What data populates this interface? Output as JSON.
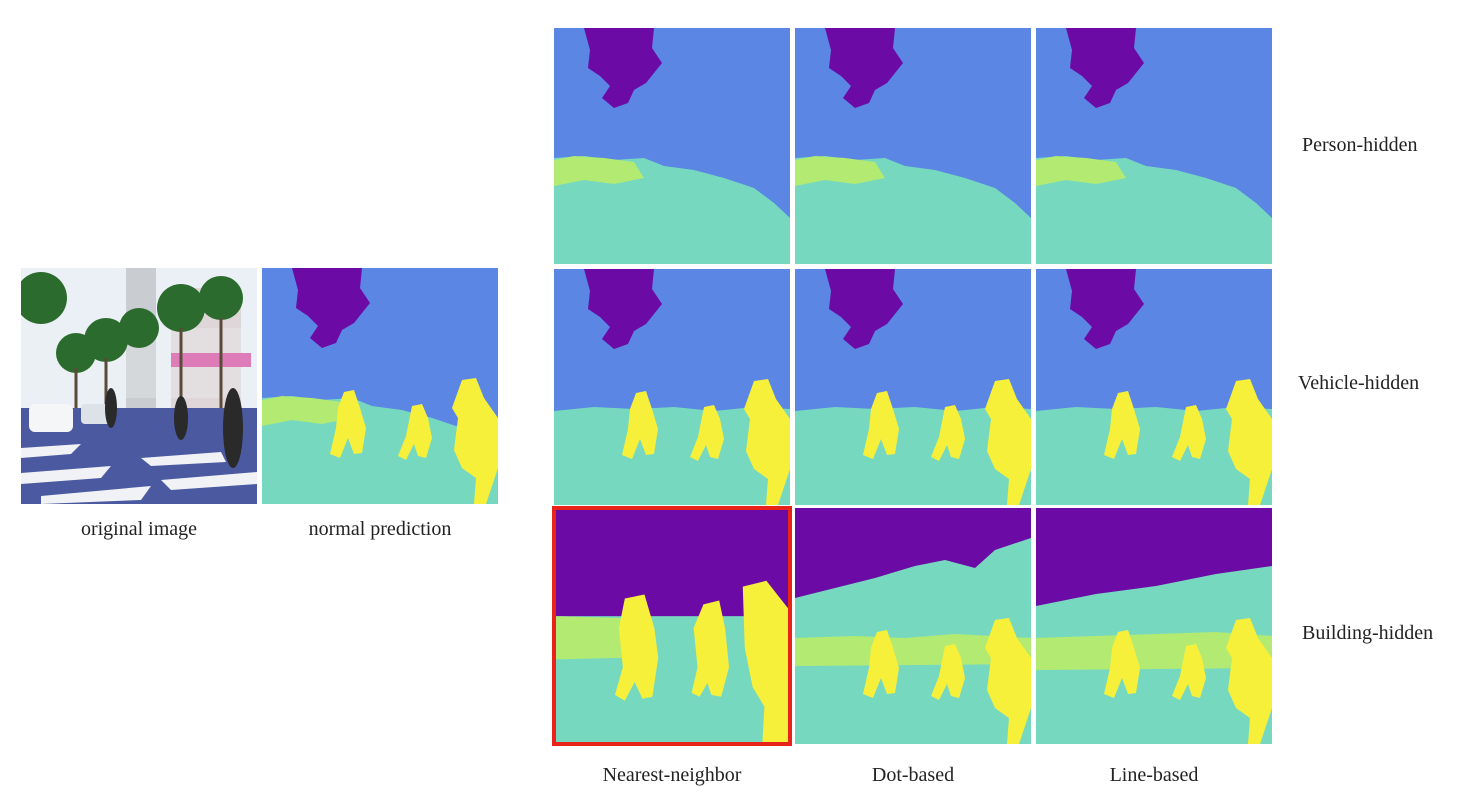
{
  "figure": {
    "left_captions": {
      "original": "original image",
      "normal": "normal prediction"
    },
    "column_captions": [
      "Nearest-neighbor",
      "Dot-based",
      "Line-based"
    ],
    "row_labels": [
      "Person-hidden",
      "Vehicle-hidden",
      "Building-hidden"
    ],
    "highlighted_panel": {
      "row": 3,
      "column": "Nearest-neighbor"
    },
    "colors": {
      "sky": "#5b86e4",
      "building": "#6b0aa4",
      "road": "#76d9bf",
      "vegetation": "#b3ea72",
      "person": "#f7f03b",
      "highlight_border": "#e8231a"
    }
  }
}
